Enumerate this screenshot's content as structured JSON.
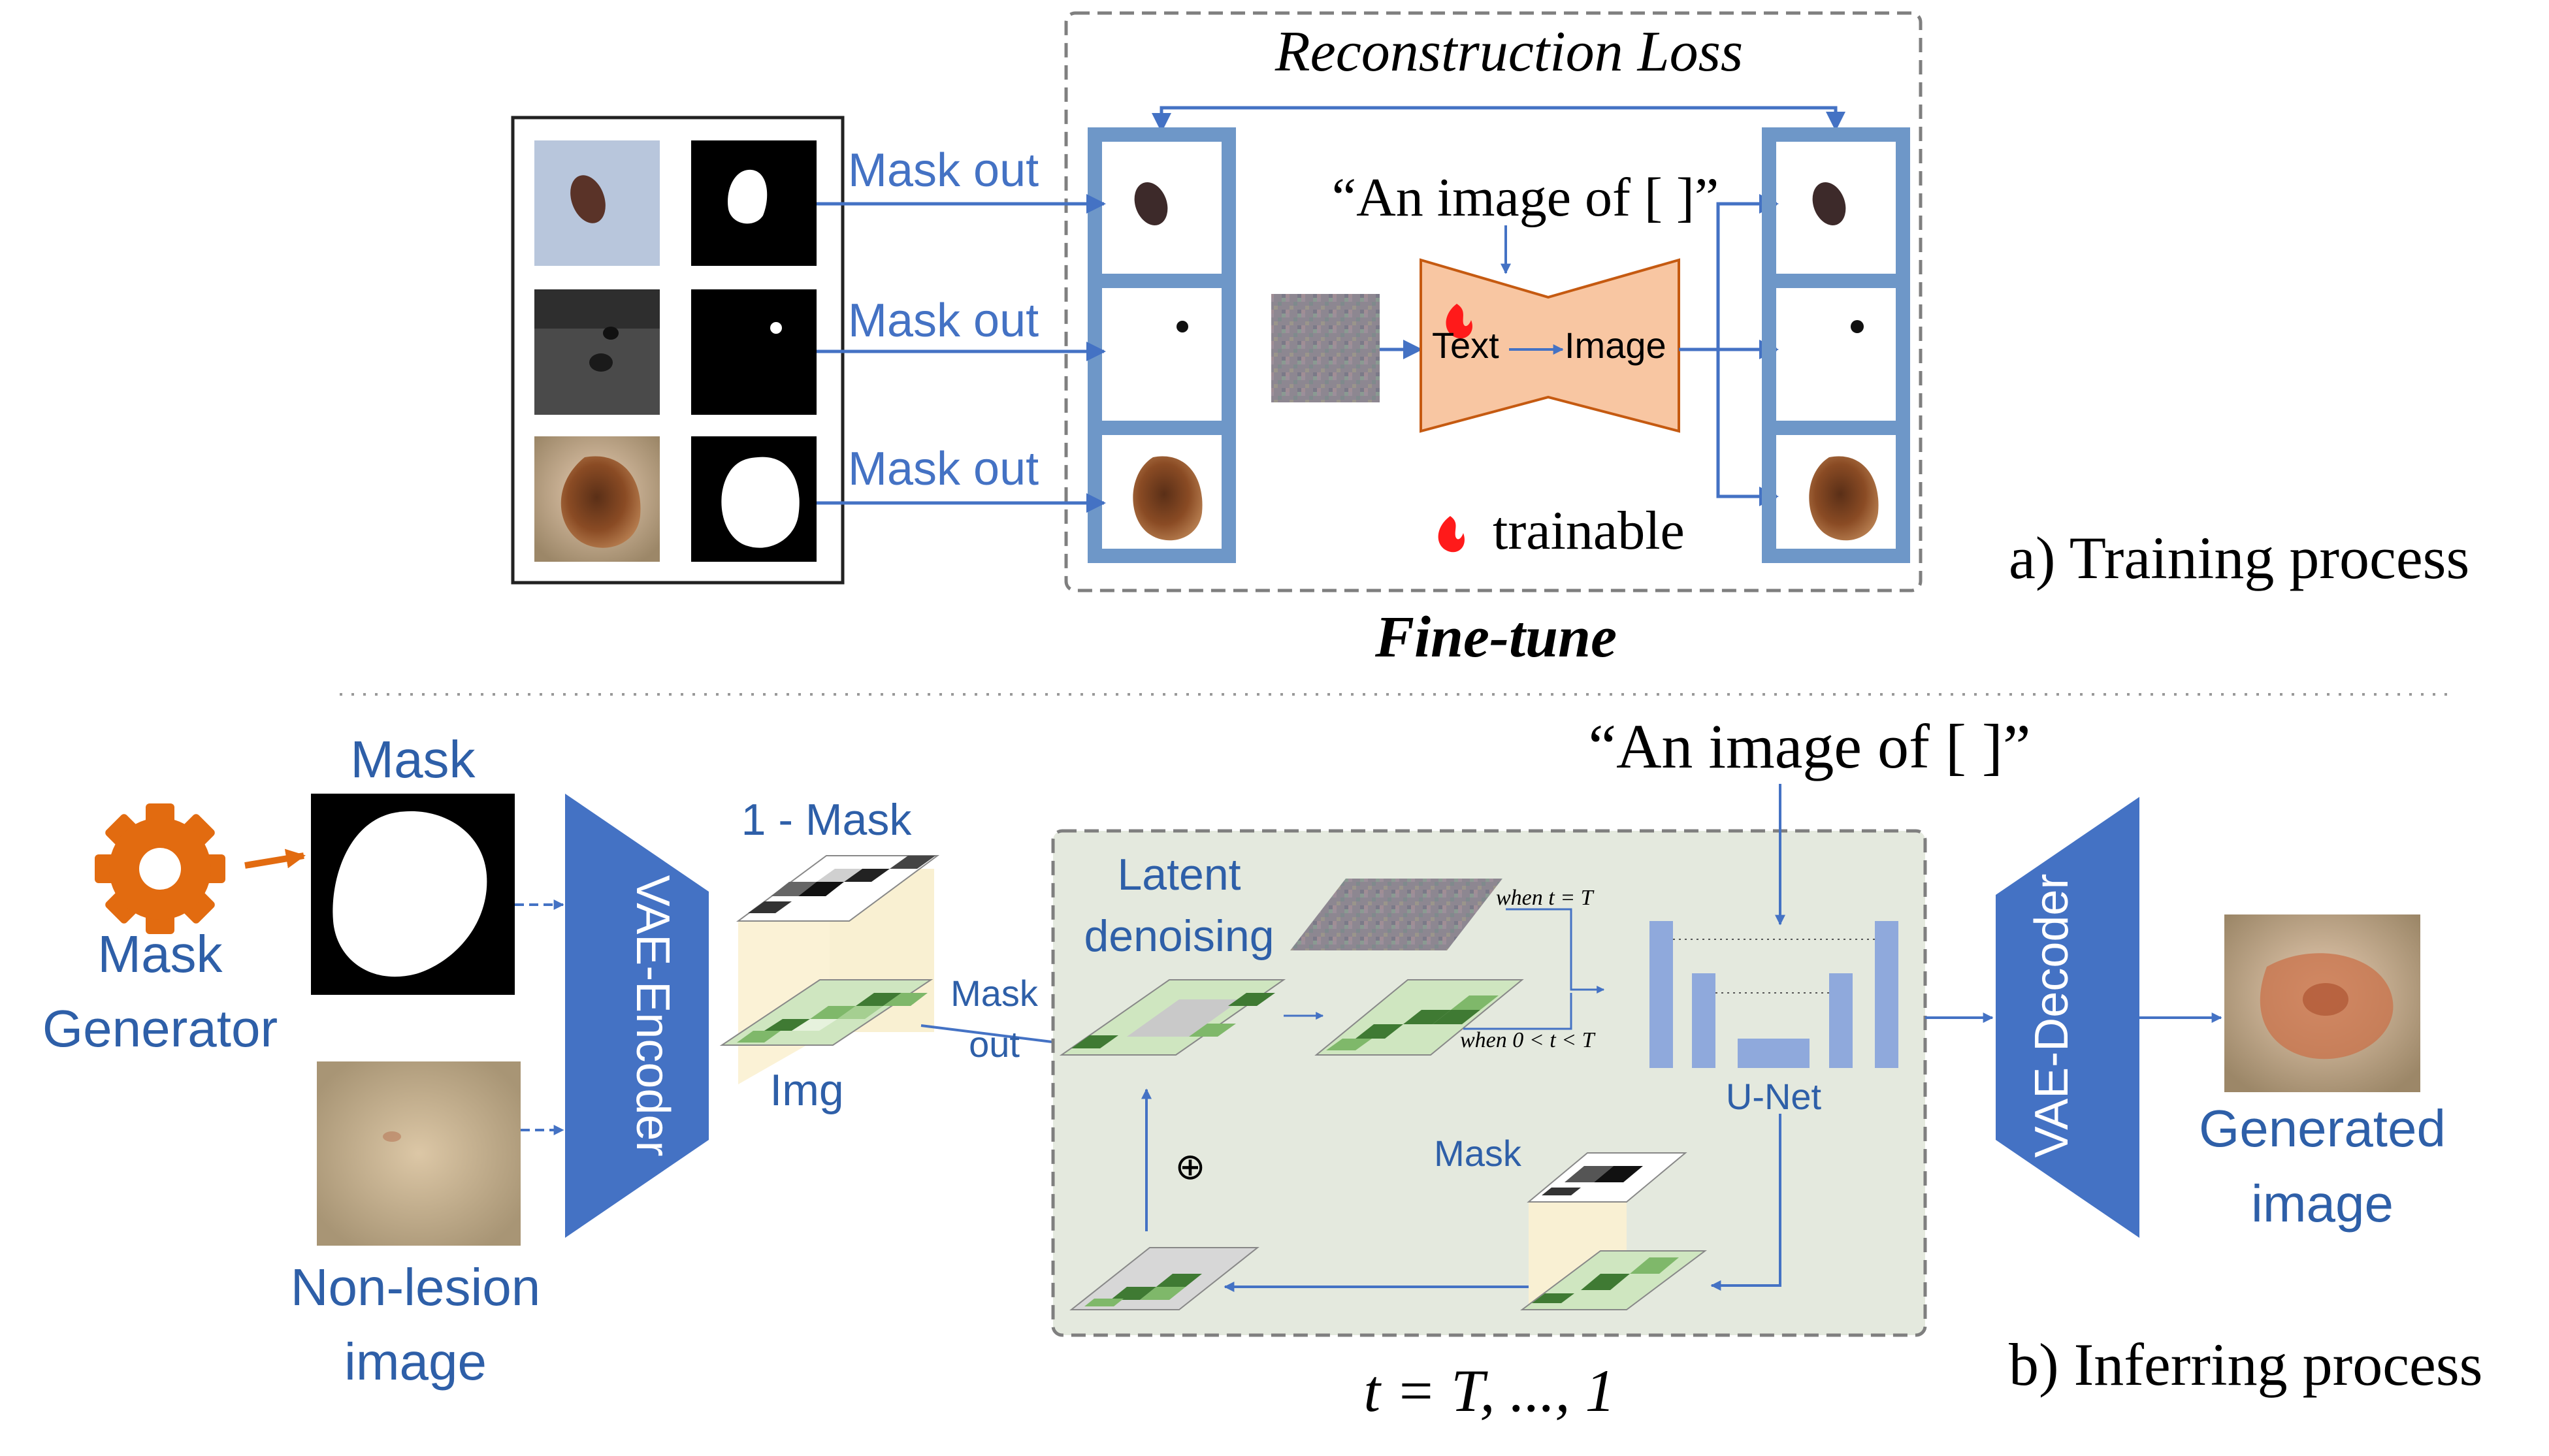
{
  "colors": {
    "arrow_blue": "#4472c4",
    "label_blue": "#2e5fa8",
    "frame_blue": "#6e97c8",
    "vae_blue": "#4472c4",
    "network_orange": "#f8c6a2",
    "network_border": "#c55a11",
    "gear_orange": "#e26b10",
    "flame_red": "#ff1a1a",
    "panel_green": "#e4e9de",
    "unet_blue": "#8fa9dc",
    "grid_dark_green": "#3f7a33",
    "grid_mid_green": "#7fb86a",
    "grid_light_green": "#cfe6c0"
  },
  "training": {
    "reconstruction_loss": "Reconstruction Loss",
    "mask_out_labels": [
      "Mask out",
      "Mask out",
      "Mask out"
    ],
    "prompt": "“An image of [ ]”",
    "network_text": "Text",
    "network_image": "Image",
    "trainable": "trainable",
    "fine_tune": "Fine-tune",
    "caption": "a) Training process"
  },
  "inferring": {
    "prompt": "“An image of [ ]”",
    "mask_title": "Mask",
    "mask_generator_line1": "Mask",
    "mask_generator_line2": "Generator",
    "non_lesion_line1": "Non-lesion",
    "non_lesion_line2": "image",
    "vae_encoder": "VAE-Encoder",
    "one_minus_mask": "1 - Mask",
    "img_label": "Img",
    "mask_out_line1": "Mask",
    "mask_out_line2": "out",
    "latent_line1": "Latent",
    "latent_line2": "denoising",
    "when_t_T": "when t = T",
    "when_0_t_T": "when 0 < t < T",
    "unet": "U-Net",
    "mask_label": "Mask",
    "oplus": "⊕",
    "vae_decoder": "VAE-Decoder",
    "generated_line1": "Generated",
    "generated_line2": "image",
    "timesteps": "t = T, ..., 1",
    "caption": "b) Inferring process"
  },
  "icons": [
    "gear-icon",
    "flame-icon",
    "skin-lesion-image",
    "ultrasound-image",
    "binary-mask-image",
    "noise-image",
    "latent-grid"
  ]
}
